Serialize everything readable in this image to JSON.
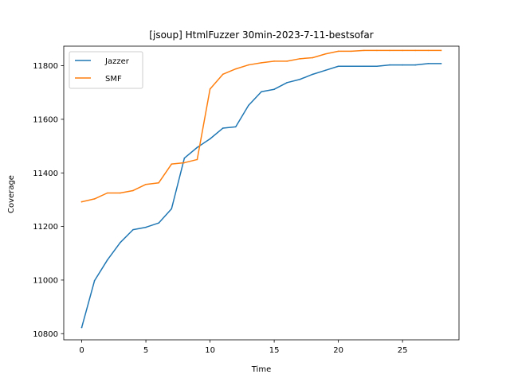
{
  "chart_data": {
    "type": "line",
    "title": "[jsoup] HtmlFuzzer 30min-2023-7-11-bestsofar",
    "xlabel": "Time",
    "ylabel": "Coverage",
    "xlim": [
      -1.4,
      29.4
    ],
    "ylim": [
      10777,
      11873
    ],
    "xticks": [
      0,
      5,
      10,
      15,
      20,
      25
    ],
    "yticks": [
      10800,
      11000,
      11200,
      11400,
      11600,
      11800
    ],
    "grid": false,
    "legend_position": "upper left",
    "x": [
      0,
      1,
      2,
      3,
      4,
      5,
      6,
      7,
      8,
      9,
      10,
      11,
      12,
      13,
      14,
      15,
      16,
      17,
      18,
      19,
      20,
      21,
      22,
      23,
      24,
      25,
      26,
      27,
      28
    ],
    "series": [
      {
        "name": "Jazzer",
        "color": "#1f77b4",
        "values": [
          10823,
          10998,
          11075,
          11140,
          11188,
          11197,
          11213,
          11266,
          11455,
          11495,
          11527,
          11567,
          11572,
          11652,
          11703,
          11712,
          11737,
          11749,
          11768,
          11783,
          11798,
          11798,
          11798,
          11798,
          11803,
          11803,
          11803,
          11808,
          11808
        ]
      },
      {
        "name": "SMF",
        "color": "#ff7f0e",
        "values": [
          11292,
          11303,
          11325,
          11325,
          11334,
          11357,
          11363,
          11433,
          11438,
          11450,
          11713,
          11768,
          11788,
          11803,
          11811,
          11817,
          11817,
          11826,
          11830,
          11844,
          11854,
          11854,
          11857,
          11857,
          11857,
          11857,
          11857,
          11857,
          11857
        ]
      }
    ]
  }
}
